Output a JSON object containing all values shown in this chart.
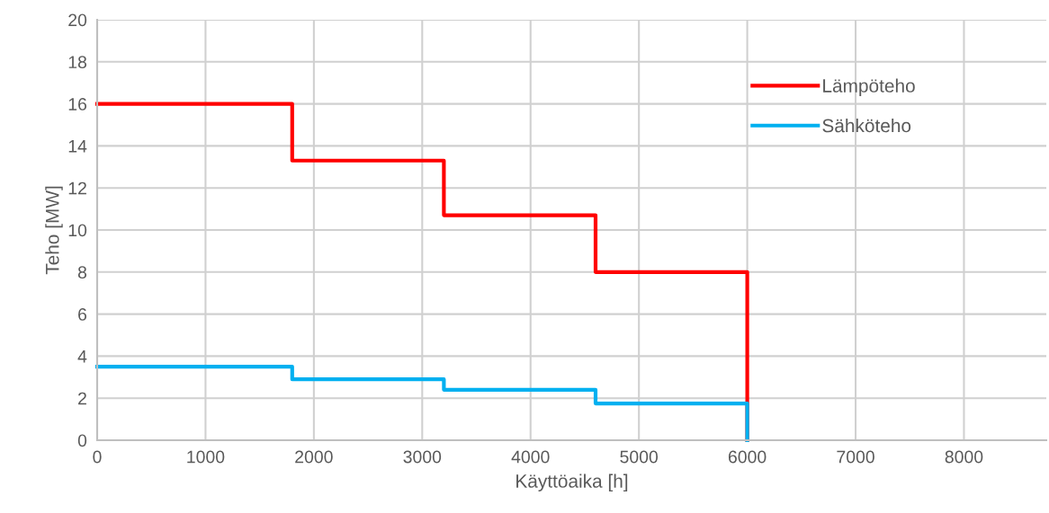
{
  "chart_data": {
    "type": "step",
    "xlabel": "Käyttöaika [h]",
    "ylabel": "Teho [MW]",
    "x": [
      0,
      1800,
      3200,
      4600,
      6000
    ],
    "series": [
      {
        "name": "Lämpöteho",
        "color": "#ff0000",
        "values": [
          16,
          13.3,
          10.7,
          8,
          0
        ]
      },
      {
        "name": "Sähköteho",
        "color": "#00b0f0",
        "values": [
          3.5,
          2.9,
          2.4,
          1.75,
          0
        ]
      }
    ],
    "xlim": [
      0,
      8760
    ],
    "xticks": [
      0,
      1000,
      2000,
      3000,
      4000,
      5000,
      6000,
      7000,
      8000
    ],
    "ylim": [
      0,
      20
    ],
    "yticks": [
      0,
      2,
      4,
      6,
      8,
      10,
      12,
      14,
      16,
      18,
      20
    ],
    "grid": true,
    "legend": "top right",
    "line_style": "solid",
    "marker": "none"
  }
}
